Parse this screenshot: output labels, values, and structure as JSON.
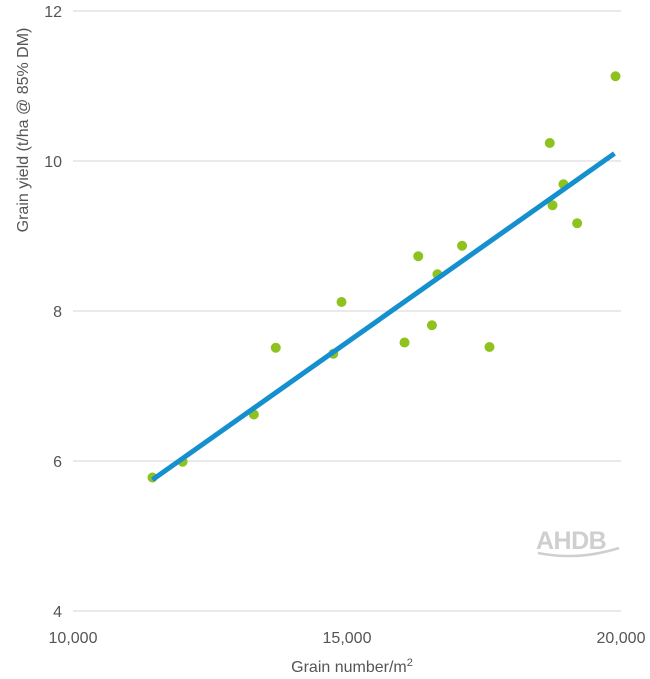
{
  "chart_data": {
    "type": "scatter",
    "xlabel": "Grain number/m",
    "xlabel_superscript": "2",
    "ylabel": "Grain yield (t/ha @ 85% DM)",
    "xlim": [
      10000,
      20000
    ],
    "ylim": [
      4,
      12
    ],
    "x_ticks": [
      10000,
      15000,
      20000
    ],
    "x_tick_labels": [
      "10,000",
      "15,000",
      "20,000"
    ],
    "y_ticks": [
      4,
      6,
      8,
      10,
      12
    ],
    "y_tick_labels": [
      "4",
      "6",
      "8",
      "10",
      "12"
    ],
    "grid": "horizontal",
    "legend": "none",
    "points": [
      {
        "x": 11450,
        "y": 5.78
      },
      {
        "x": 12000,
        "y": 5.99
      },
      {
        "x": 13300,
        "y": 6.62
      },
      {
        "x": 13700,
        "y": 7.51
      },
      {
        "x": 14750,
        "y": 7.43
      },
      {
        "x": 14900,
        "y": 8.12
      },
      {
        "x": 16050,
        "y": 7.58
      },
      {
        "x": 16300,
        "y": 8.73
      },
      {
        "x": 16550,
        "y": 7.81
      },
      {
        "x": 16650,
        "y": 8.49
      },
      {
        "x": 17100,
        "y": 8.87
      },
      {
        "x": 17600,
        "y": 7.52
      },
      {
        "x": 18700,
        "y": 10.24
      },
      {
        "x": 18750,
        "y": 9.41
      },
      {
        "x": 18950,
        "y": 9.69
      },
      {
        "x": 19200,
        "y": 9.17
      },
      {
        "x": 19900,
        "y": 11.13
      }
    ],
    "trendline": {
      "x": [
        11450,
        19880
      ],
      "y": [
        5.75,
        10.1
      ]
    },
    "colors": {
      "points": "#8dc21f",
      "trendline": "#1590cf",
      "grid": "#d4d4d4",
      "text": "#555555",
      "watermark": "#cfcfcf"
    }
  },
  "watermark": {
    "text": "AHDB"
  }
}
